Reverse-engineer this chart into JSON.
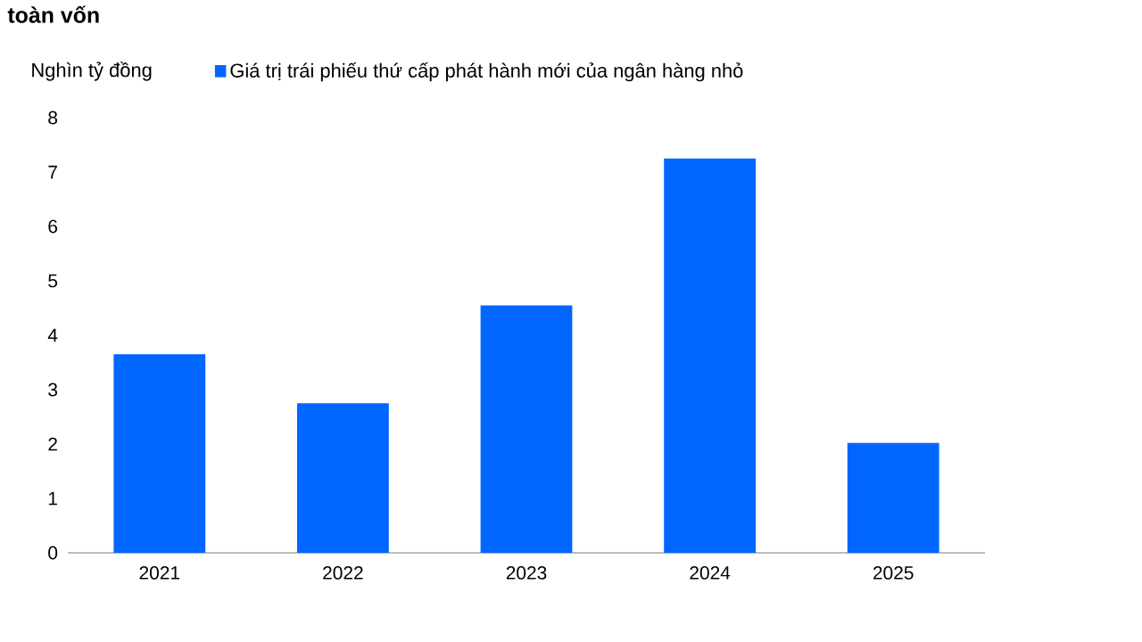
{
  "chart_data": {
    "type": "bar",
    "title": "toàn vốn",
    "ylabel": "Nghìn tỷ đồng",
    "categories": [
      "2021",
      "2022",
      "2023",
      "2024",
      "2025"
    ],
    "series": [
      {
        "name": "Giá trị trái phiếu thứ cấp phát hành mới của ngân hàng nhỏ",
        "color": "#0066ff",
        "values": [
          3.65,
          2.75,
          4.55,
          7.25,
          2.02
        ]
      }
    ],
    "ylim": [
      0,
      8
    ],
    "yticks": [
      0,
      1,
      2,
      3,
      4,
      5,
      6,
      7,
      8
    ],
    "grid": false,
    "legend": "top left"
  }
}
